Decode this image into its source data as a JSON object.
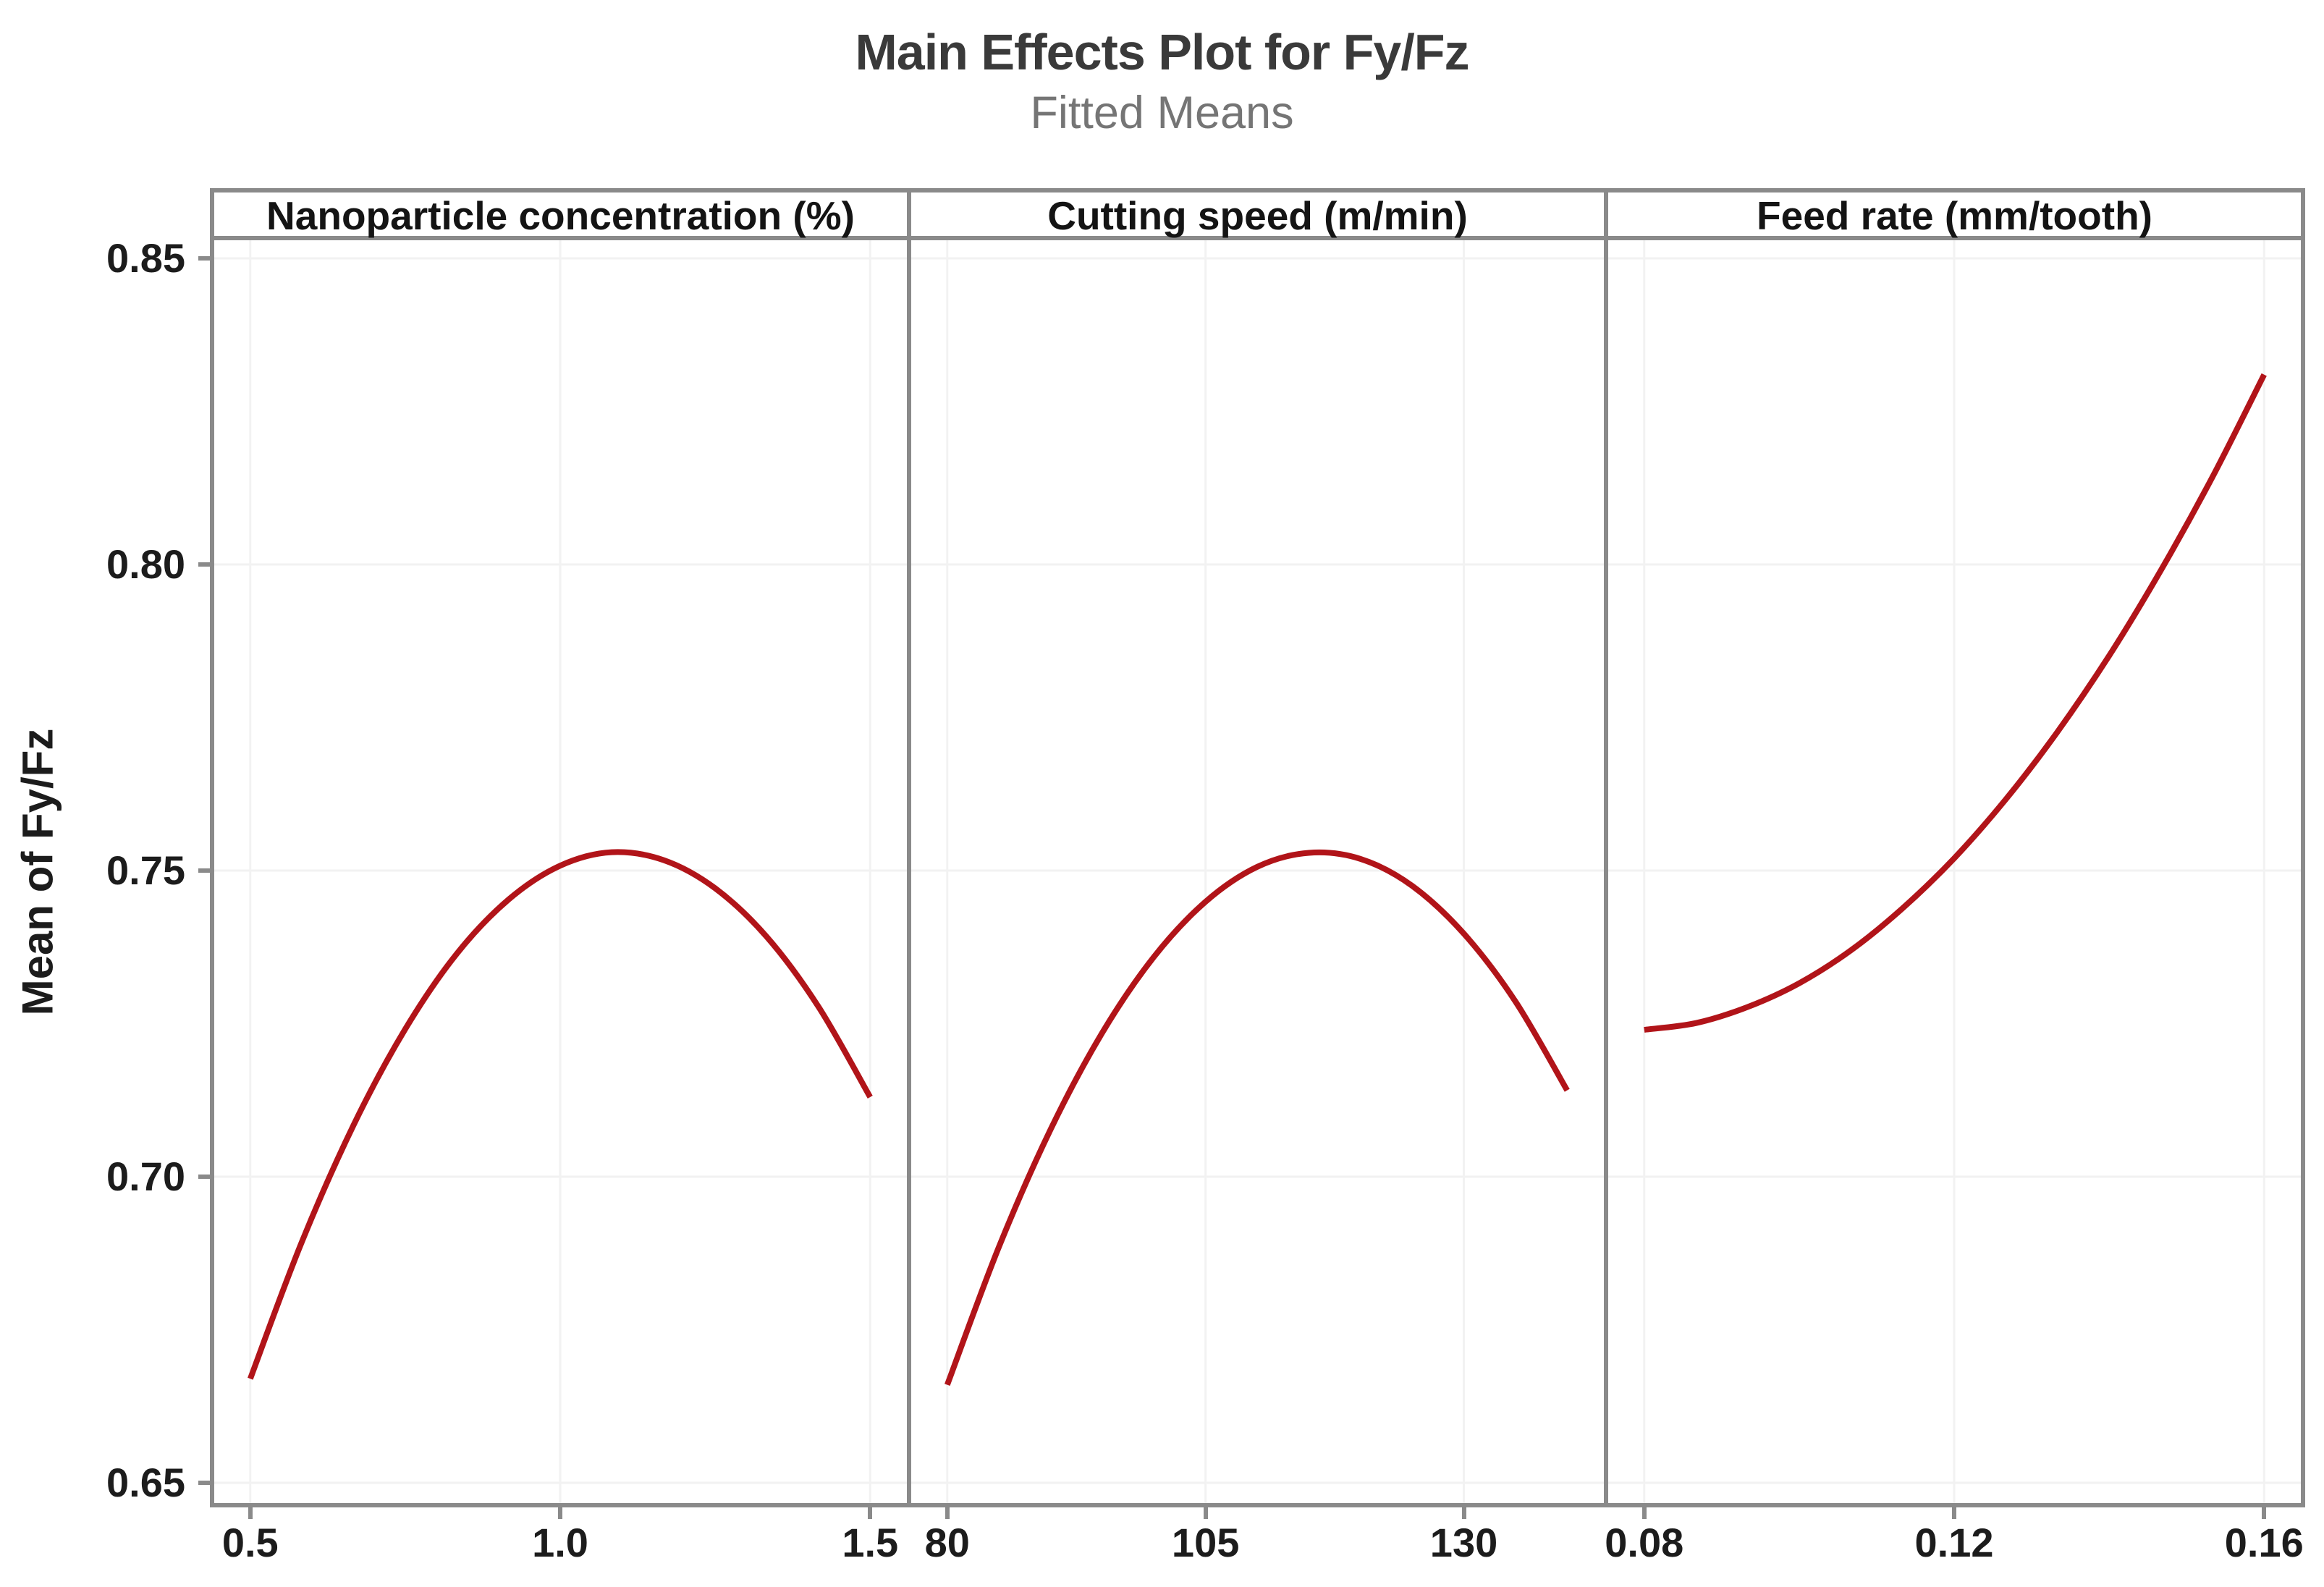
{
  "chart_data": {
    "type": "line",
    "title": "Main Effects Plot for Fy/Fz",
    "subtitle": "Fitted Means",
    "ylabel": "Mean of Fy/Fz",
    "ylim": [
      0.65,
      0.85
    ],
    "grid": true,
    "legend": "none",
    "line_color": "#b11419",
    "y_ticks": [
      {
        "value": 0.85,
        "label": "0.85"
      },
      {
        "value": 0.8,
        "label": "0.80"
      },
      {
        "value": 0.75,
        "label": "0.75"
      },
      {
        "value": 0.7,
        "label": "0.70"
      },
      {
        "value": 0.65,
        "label": "0.65"
      }
    ],
    "panels": [
      {
        "header": "Nanoparticle concentration (%)",
        "x_range": [
          0.5,
          1.5
        ],
        "x_ticks": [
          {
            "value": 0.5,
            "label": "0.5"
          },
          {
            "value": 1.0,
            "label": "1.0"
          },
          {
            "value": 1.5,
            "label": "1.5"
          }
        ],
        "points": [
          [
            0.5,
            0.667
          ],
          [
            0.583,
            0.6893
          ],
          [
            0.667,
            0.7085
          ],
          [
            0.75,
            0.7241
          ],
          [
            0.833,
            0.7364
          ],
          [
            0.917,
            0.7453
          ],
          [
            1.0,
            0.7508
          ],
          [
            1.083,
            0.753
          ],
          [
            1.167,
            0.7517
          ],
          [
            1.25,
            0.7471
          ],
          [
            1.333,
            0.7392
          ],
          [
            1.417,
            0.7277
          ],
          [
            1.5,
            0.713
          ]
        ]
      },
      {
        "header": "Cutting speed (m/min)",
        "x_range": [
          80,
          140
        ],
        "x_ticks": [
          {
            "value": 80,
            "label": "80"
          },
          {
            "value": 105,
            "label": "105"
          },
          {
            "value": 130,
            "label": "130"
          }
        ],
        "points": [
          [
            80,
            0.666
          ],
          [
            85,
            0.6885
          ],
          [
            90,
            0.7077
          ],
          [
            95,
            0.7235
          ],
          [
            100,
            0.7359
          ],
          [
            105,
            0.7449
          ],
          [
            110,
            0.7506
          ],
          [
            115,
            0.7529
          ],
          [
            120,
            0.7519
          ],
          [
            125,
            0.7475
          ],
          [
            130,
            0.7397
          ],
          [
            135,
            0.7286
          ],
          [
            140,
            0.7141
          ]
        ]
      },
      {
        "header": "Feed rate (mm/tooth)",
        "x_range": [
          0.08,
          0.16
        ],
        "x_ticks": [
          {
            "value": 0.08,
            "label": "0.08"
          },
          {
            "value": 0.12,
            "label": "0.12"
          },
          {
            "value": 0.16,
            "label": "0.16"
          }
        ],
        "points": [
          [
            0.08,
            0.724
          ],
          [
            0.0867,
            0.7251
          ],
          [
            0.0933,
            0.7277
          ],
          [
            0.1,
            0.7316
          ],
          [
            0.1067,
            0.737
          ],
          [
            0.1133,
            0.7438
          ],
          [
            0.12,
            0.752
          ],
          [
            0.1267,
            0.7617
          ],
          [
            0.1333,
            0.7726
          ],
          [
            0.14,
            0.7851
          ],
          [
            0.1467,
            0.7991
          ],
          [
            0.1533,
            0.8142
          ],
          [
            0.16,
            0.831
          ]
        ]
      }
    ]
  },
  "colors": {
    "line": "#b11419",
    "frame": "#8a8a8a",
    "gridline": "#f2f2f2",
    "tick_text": "#1c1c1c",
    "title_text": "#3a3a3a",
    "subtitle_text": "#757575"
  }
}
